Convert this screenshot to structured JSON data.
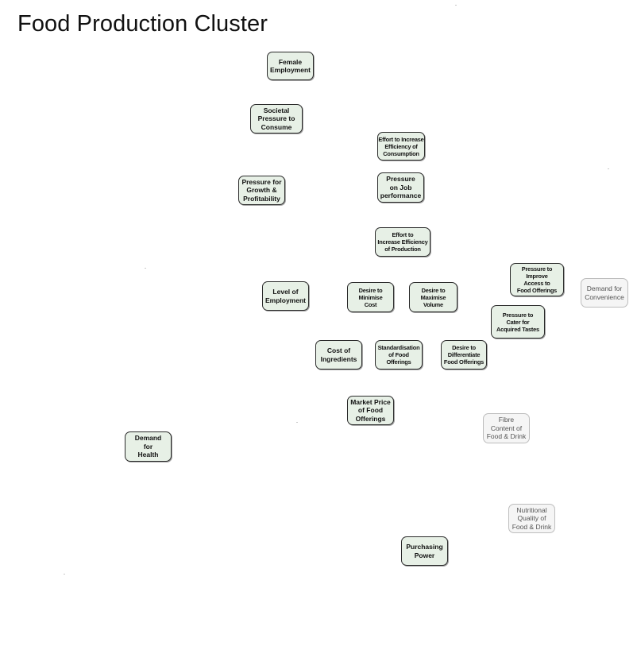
{
  "title": "Food Production Cluster",
  "colors": {
    "active_fill": "#e7f0e6",
    "active_border": "#2b2b2b",
    "inactive_fill": "#f5f5f5",
    "inactive_border": "#bdbdbd"
  },
  "nodes": {
    "female_employment": "Female\nEmployment",
    "societal_pressure": "Societal\nPressure to\nConsume",
    "effort_efficiency_consumption": "Effort to Increase\nEfficiency of\nConsumption",
    "pressure_growth": "Pressure for\nGrowth &\nProfitability",
    "pressure_job": "Pressure\non Job\nperformance",
    "effort_efficiency_production": "Effort to\nIncrease Efficiency\nof Production",
    "pressure_access": "Pressure to\nImprove\nAccess to\nFood Offerings",
    "demand_convenience": "Demand for\nConvenience",
    "level_employment": "Level of\nEmployment",
    "desire_minimise": "Desire to\nMinimise\nCost",
    "desire_maximise": "Desire to\nMaximise\nVolume",
    "pressure_tastes": "Pressure to\nCater  for\nAcquired Tastes",
    "cost_ingredients": "Cost of\nIngredients",
    "standardisation": "Standardisation\nof Food\nOfferings",
    "desire_differentiate": "Desire to\nDifferentiate\nFood Offerings",
    "market_price": "Market Price\nof Food\nOfferings",
    "fibre_content": "Fibre\nContent of\nFood & Drink",
    "demand_health": "Demand\nfor\nHealth",
    "nutritional_quality": "Nutritional\nQuality of\nFood & Drink",
    "purchasing_power": "Purchasing\nPower"
  }
}
